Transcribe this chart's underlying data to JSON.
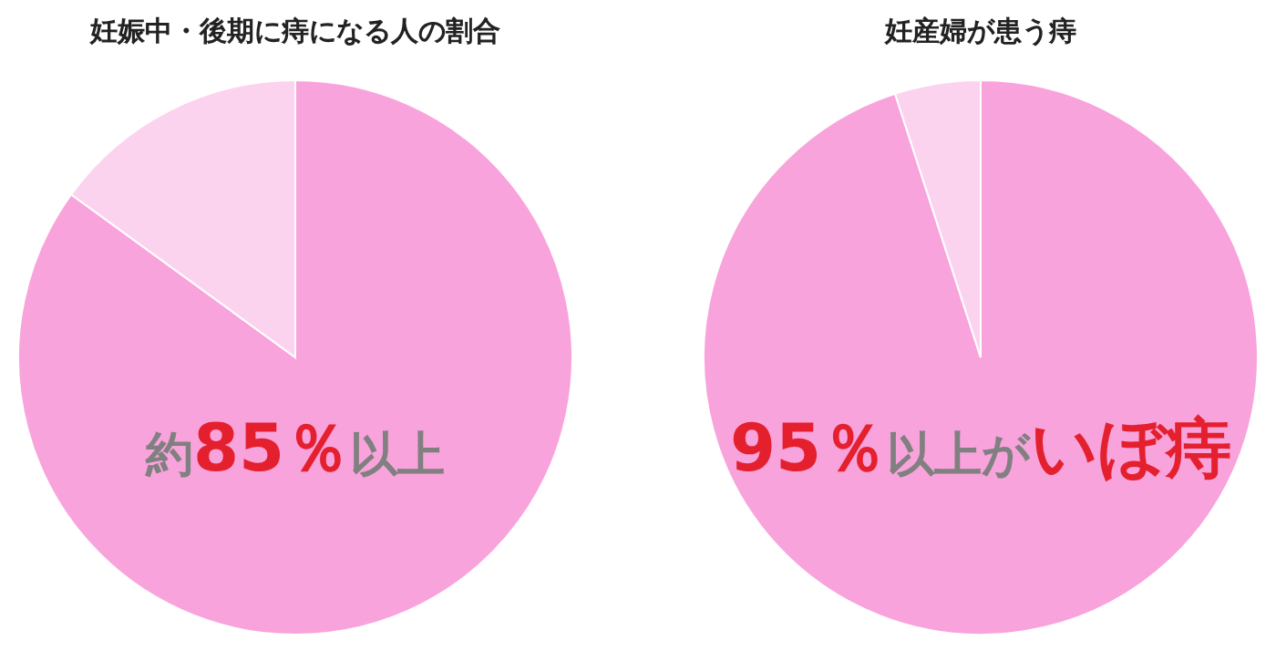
{
  "chart_data": [
    {
      "type": "pie",
      "title": "妊娠中・後期に痔になる人の割合",
      "categories": [
        null,
        null
      ],
      "values": [
        85,
        15
      ],
      "colors": [
        "#f9a3dc",
        "#fcd3ee"
      ],
      "annotations": [
        "約**85％**以上"
      ]
    },
    {
      "type": "pie",
      "title": "妊産婦が患う痔",
      "categories": [
        null,
        null
      ],
      "values": [
        95,
        5
      ],
      "colors": [
        "#f9a3dc",
        "#fcd3ee"
      ],
      "annotations": [
        "**95％**以上が**いぼ痔**"
      ]
    }
  ]
}
